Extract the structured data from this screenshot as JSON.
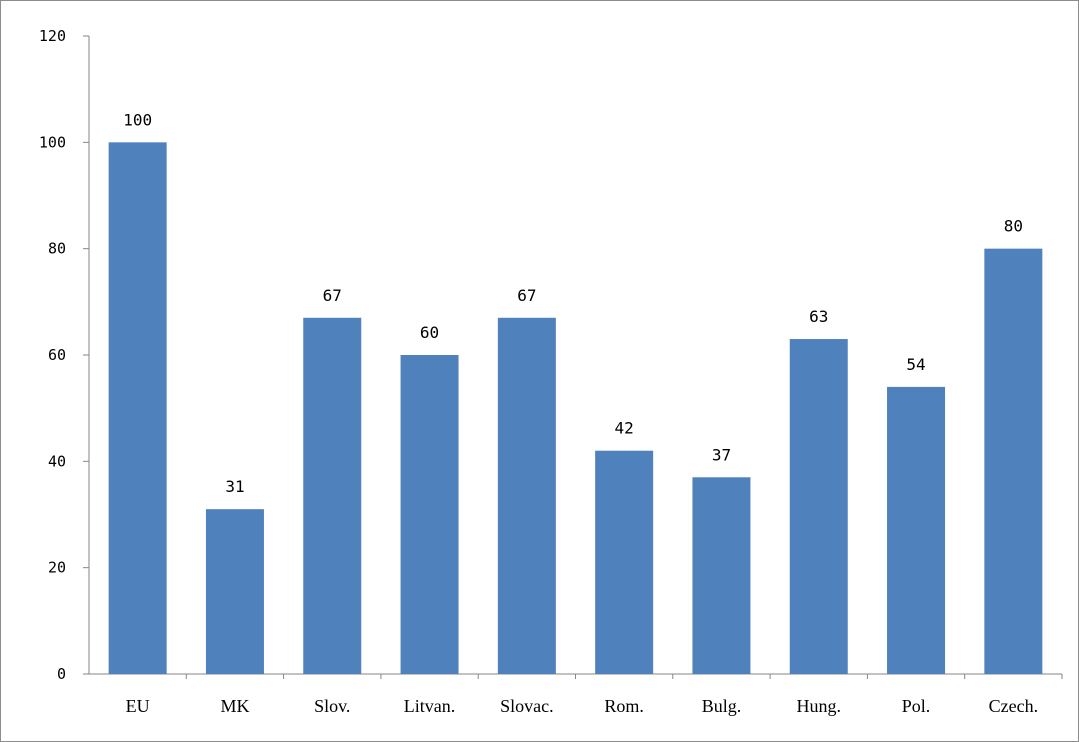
{
  "chart_data": {
    "type": "bar",
    "categories": [
      "EU",
      "MK",
      "Slov.",
      "Litvan.",
      "Slovac.",
      "Rom.",
      "Bulg.",
      "Hung.",
      "Pol.",
      "Czech."
    ],
    "values": [
      100,
      31,
      67,
      60,
      67,
      42,
      37,
      63,
      54,
      80
    ],
    "title": "",
    "xlabel": "",
    "ylabel": "",
    "ylim": [
      0,
      120
    ],
    "yticks": [
      0,
      20,
      40,
      60,
      80,
      100,
      120
    ],
    "grid": false,
    "legend": "none",
    "data_labels": true,
    "bar_color": "#4f81bd"
  }
}
